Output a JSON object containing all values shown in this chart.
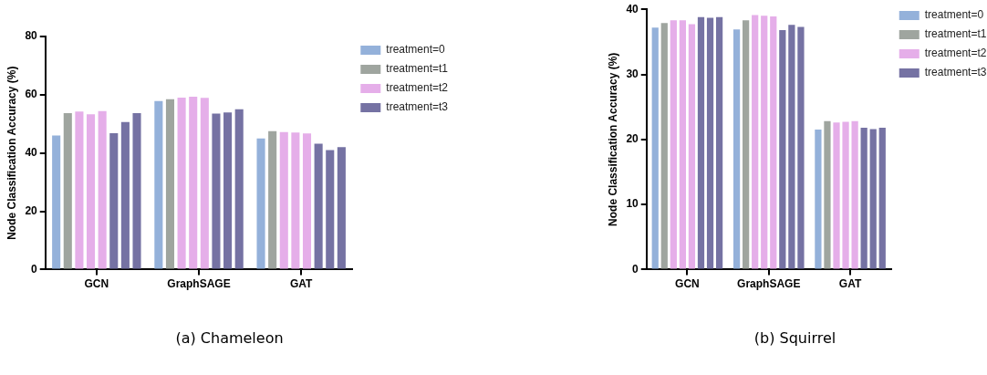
{
  "chart_data": [
    {
      "type": "bar",
      "title": "(a) Chameleon",
      "ylabel": "Node Classification Accuracy (%)",
      "categories": [
        "GCN",
        "GraphSAGE",
        "GAT"
      ],
      "ylim": [
        0,
        80
      ],
      "yticks": [
        0,
        20,
        40,
        60,
        80
      ],
      "grid": false,
      "legend": "right",
      "series": [
        {
          "name": "treatment=0",
          "color": "#94b1da",
          "values": [
            46.0,
            57.8,
            45.0
          ]
        },
        {
          "name": "treatment=t1",
          "color": "#9fa59f",
          "values": [
            53.7,
            58.5,
            47.5
          ]
        },
        {
          "name": "treatment=t2",
          "color": "#e5aee9",
          "values": [
            54.2,
            59.0,
            47.2
          ]
        },
        {
          "color": "#e5aee9",
          "values": [
            53.3,
            59.3,
            47.0
          ]
        },
        {
          "color": "#e5aee9",
          "values": [
            54.4,
            58.9,
            46.7
          ]
        },
        {
          "name": "treatment=t3",
          "color": "#7572a3",
          "values": [
            46.8,
            53.5,
            43.2
          ]
        },
        {
          "color": "#7572a3",
          "values": [
            50.6,
            53.9,
            41.0
          ]
        },
        {
          "color": "#7572a3",
          "values": [
            53.7,
            55.0,
            42.0
          ]
        }
      ]
    },
    {
      "type": "bar",
      "title": "(b) Squirrel",
      "ylabel": "Node Classification Accuracy (%)",
      "categories": [
        "GCN",
        "GraphSAGE",
        "GAT"
      ],
      "ylim": [
        0,
        40
      ],
      "yticks": [
        0,
        10,
        20,
        30,
        40
      ],
      "grid": false,
      "legend": "right",
      "series": [
        {
          "name": "treatment=0",
          "color": "#94b1da",
          "values": [
            37.2,
            36.9,
            21.5
          ]
        },
        {
          "name": "treatment=t1",
          "color": "#9fa59f",
          "values": [
            37.9,
            38.3,
            22.8
          ]
        },
        {
          "name": "treatment=t2",
          "color": "#e5aee9",
          "values": [
            38.3,
            39.1,
            22.6
          ]
        },
        {
          "color": "#e5aee9",
          "values": [
            38.3,
            39.0,
            22.7
          ]
        },
        {
          "color": "#e5aee9",
          "values": [
            37.7,
            38.9,
            22.8
          ]
        },
        {
          "name": "treatment=t3",
          "color": "#7572a3",
          "values": [
            38.8,
            36.8,
            21.8
          ]
        },
        {
          "color": "#7572a3",
          "values": [
            38.7,
            37.6,
            21.6
          ]
        },
        {
          "color": "#7572a3",
          "values": [
            38.8,
            37.3,
            21.8
          ]
        }
      ]
    }
  ]
}
